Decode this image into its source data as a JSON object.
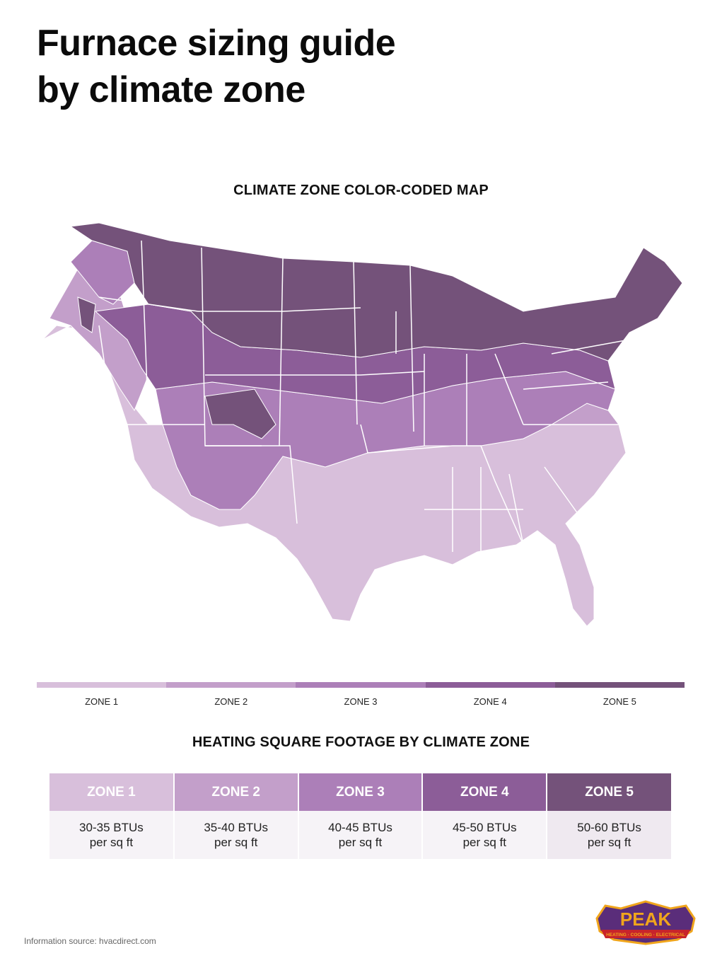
{
  "title": {
    "line1": "Furnace sizing guide",
    "line2": "by climate zone"
  },
  "map": {
    "heading": "CLIMATE ZONE COLOR-CODED MAP",
    "colors": {
      "zone1": "#d8bfdb",
      "zone2": "#c39fca",
      "zone3": "#ac7fb8",
      "zone4": "#8c5d98",
      "zone5": "#74527a"
    }
  },
  "legend": [
    {
      "label": "ZONE 1",
      "color": "#d8bfdb"
    },
    {
      "label": "ZONE 2",
      "color": "#c39fca"
    },
    {
      "label": "ZONE 3",
      "color": "#ac7fb8"
    },
    {
      "label": "ZONE 4",
      "color": "#8c5d98"
    },
    {
      "label": "ZONE 5",
      "color": "#74527a"
    }
  ],
  "table": {
    "heading": "HEATING SQUARE FOOTAGE BY CLIMATE ZONE",
    "columns": [
      {
        "zone": "ZONE 1",
        "value": "30-35 BTUs",
        "unit": "per sq ft",
        "header_color": "#d8bfdb",
        "cell_color": "#f6f3f7"
      },
      {
        "zone": "ZONE 2",
        "value": "35-40 BTUs",
        "unit": "per sq ft",
        "header_color": "#c39fca",
        "cell_color": "#f6f3f7"
      },
      {
        "zone": "ZONE 3",
        "value": "40-45 BTUs",
        "unit": "per sq ft",
        "header_color": "#ac7fb8",
        "cell_color": "#f6f3f7"
      },
      {
        "zone": "ZONE 4",
        "value": "45-50 BTUs",
        "unit": "per sq ft",
        "header_color": "#8c5d98",
        "cell_color": "#f6f3f7"
      },
      {
        "zone": "ZONE 5",
        "value": "50-60 BTUs",
        "unit": "per sq ft",
        "header_color": "#74527a",
        "cell_color": "#efe9f0"
      }
    ]
  },
  "footer": {
    "source": "Information source: hvacdirect.com"
  },
  "logo": {
    "name": "PEAK",
    "tagline": "HEATING · COOLING · ELECTRICAL",
    "colors": {
      "shield": "#5a2d7a",
      "gold": "#f0a51c",
      "red": "#c8242b"
    }
  }
}
